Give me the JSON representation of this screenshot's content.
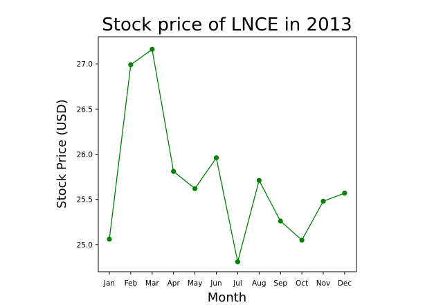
{
  "chart_data": {
    "type": "line",
    "title": "Stock price of LNCE in 2013",
    "xlabel": "Month",
    "ylabel": "Stock Price (USD)",
    "categories": [
      "Jan",
      "Feb",
      "Mar",
      "Apr",
      "May",
      "Jun",
      "Jul",
      "Aug",
      "Sep",
      "Oct",
      "Nov",
      "Dec"
    ],
    "values": [
      25.06,
      26.99,
      27.16,
      25.81,
      25.62,
      25.96,
      24.81,
      25.71,
      25.26,
      25.05,
      25.48,
      25.57
    ],
    "yticks": [
      "25.0",
      "25.5",
      "26.0",
      "26.5",
      "27.0"
    ],
    "ylim": [
      24.7,
      27.3
    ],
    "grid": false,
    "colors": {
      "line": "#008000",
      "marker": "#008000",
      "axes": "#000000"
    }
  }
}
